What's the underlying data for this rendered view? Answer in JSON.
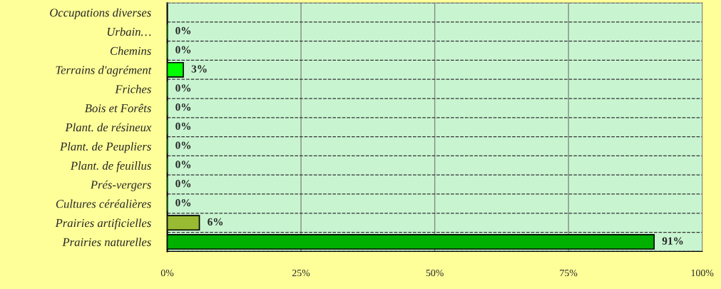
{
  "chart_data": {
    "type": "bar",
    "orientation": "horizontal",
    "categories": [
      "Occupations diverses",
      "Urbain…",
      "Chemins",
      "Terrains d'agrément",
      "Friches",
      "Bois et Forêts",
      "Plant. de résineux",
      "Plant. de Peupliers",
      "Plant. de feuillus",
      "Prés-vergers",
      "Cultures céréalières",
      "Prairies artificielles",
      "Prairies naturelles"
    ],
    "values": [
      null,
      0,
      0,
      3,
      0,
      0,
      0,
      0,
      0,
      0,
      0,
      6,
      91
    ],
    "value_labels": [
      null,
      "0%",
      "0%",
      "3%",
      "0%",
      "0%",
      "0%",
      "0%",
      "0%",
      "0%",
      "0%",
      "6%",
      "91%"
    ],
    "colors": [
      "#00b000",
      "#00b000",
      "#00b000",
      "#00ff00",
      "#00b000",
      "#00b000",
      "#00b000",
      "#00b000",
      "#00b000",
      "#00b000",
      "#00b000",
      "#99bb33",
      "#00b000"
    ],
    "xlim": [
      0,
      100
    ],
    "xticks": [
      {
        "value": 0,
        "label": "0%"
      },
      {
        "value": 25,
        "label": "25%"
      },
      {
        "value": 50,
        "label": "50%"
      },
      {
        "value": 75,
        "label": "75%"
      },
      {
        "value": 100,
        "label": "100%"
      }
    ],
    "grid": true
  }
}
